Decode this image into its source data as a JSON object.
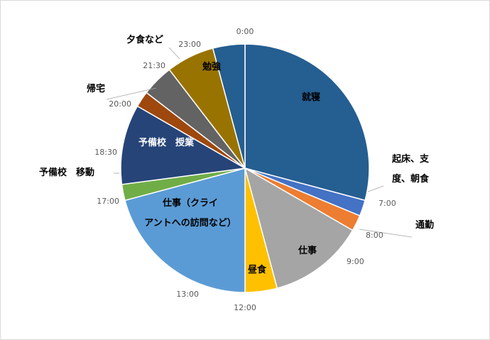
{
  "chart_data": {
    "type": "pie",
    "slices": [
      {
        "label": "就寝",
        "start": "0:00",
        "end": "7:00",
        "hours": 7.0,
        "color": "#255e91"
      },
      {
        "label": "起床、支度、朝食",
        "start": "7:00",
        "end": "7:30",
        "hours": 0.5,
        "color": "#4472c4"
      },
      {
        "label": "通勤",
        "start": "7:30",
        "end": "8:00",
        "hours": 0.5,
        "color": "#ed7d31"
      },
      {
        "label": "仕事",
        "start": "8:00",
        "end": "11:00",
        "hours": 3.0,
        "color": "#a5a5a5"
      },
      {
        "label": "昼食",
        "start": "11:00",
        "end": "12:00",
        "hours": 1.0,
        "color": "#ffc000"
      },
      {
        "label": "仕事（クライアントへの訪問など）",
        "start": "12:00",
        "end": "17:00",
        "hours": 5.0,
        "color": "#5b9bd5"
      },
      {
        "label": "予備校　移動",
        "start": "17:00",
        "end": "17:30",
        "hours": 0.5,
        "color": "#70ad47"
      },
      {
        "label": "予備校　授業",
        "start": "17:30",
        "end": "20:00",
        "hours": 2.5,
        "color": "#264478"
      },
      {
        "label": "帰宅",
        "start": "20:00",
        "end": "20:30",
        "hours": 0.5,
        "color": "#9e480e"
      },
      {
        "label": "夕食など",
        "start": "20:30",
        "end": "21:30",
        "hours": 1.0,
        "color": "#636363"
      },
      {
        "label": "勉強",
        "start": "21:30",
        "end": "23:00",
        "hours": 1.5,
        "color": "#997300"
      },
      {
        "label": "就寝",
        "start": "23:00",
        "end": "24:00",
        "hours": 1.0,
        "color": "#255e91"
      }
    ],
    "time_labels": [
      "0:00",
      "7:00",
      "8:00",
      "9:00",
      "12:00",
      "13:00",
      "17:00",
      "18:30",
      "20:00",
      "21:30",
      "23:00"
    ]
  }
}
